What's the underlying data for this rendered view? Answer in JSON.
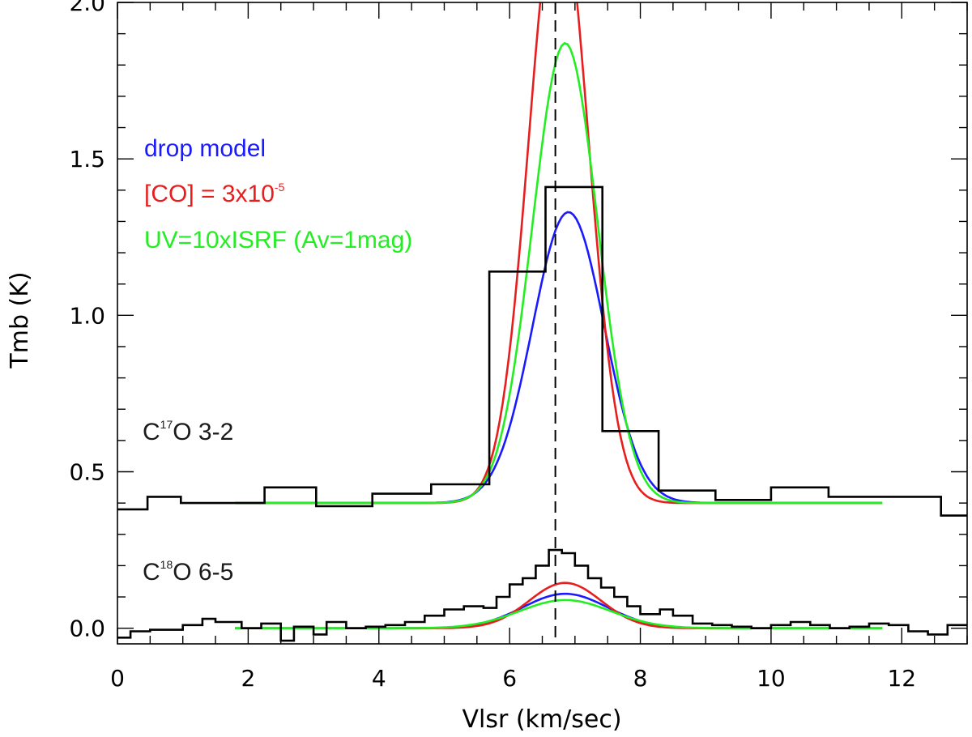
{
  "chart_data": {
    "type": "line",
    "xlabel": "Vlsr (km/sec)",
    "ylabel": "Tmb (K)",
    "xlim": [
      0,
      13
    ],
    "ylim": [
      -0.05,
      2.0
    ],
    "xticks": [
      0,
      2,
      4,
      6,
      8,
      10,
      12
    ],
    "xtick_labels": [
      "0",
      "2",
      "4",
      "6",
      "8",
      "10",
      "12"
    ],
    "yticks": [
      0.0,
      0.5,
      1.0,
      1.5,
      2.0
    ],
    "ytick_labels": [
      "0.0",
      "0.5",
      "1.0",
      "1.5",
      "2.0"
    ],
    "reference_line": {
      "x": 6.7,
      "style": "dashed"
    },
    "line_labels": [
      {
        "main": "C",
        "sup": "17",
        "rest": "O 3-2"
      },
      {
        "main": "C",
        "sup": "18",
        "rest": "O 6-5"
      }
    ],
    "legend": [
      {
        "label": "drop model",
        "color": "#1a1aff"
      },
      {
        "label_main": "[CO] = 3x10",
        "label_sup": "-5",
        "color": "#e81e1e"
      },
      {
        "label": "UV=10xISRF (Av=1mag)",
        "color": "#22ee22"
      }
    ],
    "observed": [
      {
        "name": "C17O 3-2 observed",
        "style": "step",
        "color": "#000000",
        "x": [
          0.0,
          0.46,
          0.46,
          0.97,
          0.97,
          1.47,
          1.47,
          2.25,
          2.25,
          3.04,
          3.04,
          3.9,
          3.9,
          4.8,
          4.8,
          5.69,
          5.69,
          6.55,
          6.55,
          7.42,
          7.42,
          8.28,
          8.28,
          9.15,
          9.15,
          10.0,
          10.0,
          10.88,
          10.88,
          11.74,
          11.74,
          12.6,
          12.6,
          13.0
        ],
        "y": [
          0.38,
          0.38,
          0.42,
          0.42,
          0.4,
          0.4,
          0.4,
          0.4,
          0.45,
          0.45,
          0.39,
          0.39,
          0.43,
          0.43,
          0.46,
          0.46,
          1.14,
          1.14,
          1.41,
          1.41,
          0.63,
          0.63,
          0.44,
          0.44,
          0.41,
          0.41,
          0.45,
          0.45,
          0.42,
          0.42,
          0.42,
          0.42,
          0.36,
          0.36
        ]
      },
      {
        "name": "C18O 6-5 observed",
        "style": "step",
        "color": "#000000",
        "x": [
          0.0,
          0.2,
          0.2,
          0.5,
          0.5,
          1.0,
          1.0,
          1.3,
          1.3,
          1.5,
          1.5,
          1.9,
          1.9,
          2.2,
          2.2,
          2.5,
          2.5,
          2.7,
          2.7,
          3.0,
          3.0,
          3.2,
          3.2,
          3.5,
          3.5,
          3.8,
          3.8,
          4.1,
          4.1,
          4.4,
          4.4,
          4.7,
          4.7,
          5.0,
          5.0,
          5.3,
          5.3,
          5.6,
          5.6,
          5.8,
          5.8,
          6.0,
          6.0,
          6.2,
          6.2,
          6.4,
          6.4,
          6.6,
          6.6,
          6.8,
          6.8,
          7.0,
          7.0,
          7.2,
          7.2,
          7.4,
          7.4,
          7.6,
          7.6,
          7.8,
          7.8,
          8.0,
          8.0,
          8.3,
          8.3,
          8.5,
          8.5,
          8.8,
          8.8,
          9.1,
          9.1,
          9.4,
          9.4,
          9.7,
          9.7,
          10.0,
          10.0,
          10.3,
          10.3,
          10.6,
          10.6,
          10.9,
          10.9,
          11.2,
          11.2,
          11.5,
          11.5,
          11.8,
          11.8,
          12.1,
          12.1,
          12.4,
          12.4,
          12.7,
          12.7,
          13.0
        ],
        "y": [
          -0.03,
          -0.03,
          -0.01,
          -0.01,
          -0.005,
          -0.005,
          0.01,
          0.01,
          0.03,
          0.03,
          0.02,
          0.02,
          0.0,
          0.0,
          0.015,
          0.015,
          -0.04,
          -0.04,
          0.005,
          0.005,
          -0.02,
          -0.02,
          0.02,
          0.02,
          0.0,
          0.0,
          0.005,
          0.005,
          0.01,
          0.01,
          0.02,
          0.02,
          0.04,
          0.04,
          0.06,
          0.06,
          0.07,
          0.07,
          0.065,
          0.065,
          0.1,
          0.1,
          0.14,
          0.14,
          0.16,
          0.16,
          0.2,
          0.2,
          0.25,
          0.25,
          0.24,
          0.24,
          0.2,
          0.2,
          0.16,
          0.16,
          0.13,
          0.13,
          0.1,
          0.1,
          0.07,
          0.07,
          0.045,
          0.045,
          0.06,
          0.06,
          0.04,
          0.04,
          0.015,
          0.015,
          0.01,
          0.01,
          0.005,
          0.005,
          0.0,
          0.0,
          0.01,
          0.01,
          0.02,
          0.02,
          0.01,
          0.01,
          0.0,
          0.0,
          0.005,
          0.005,
          0.015,
          0.015,
          0.01,
          0.01,
          -0.01,
          -0.01,
          -0.02,
          -0.02,
          0.01,
          0.01
        ]
      }
    ],
    "models": [
      {
        "name": "drop model (C17O)",
        "color": "#1a1aff",
        "baseline": 0.4,
        "amplitude": 0.93,
        "center": 6.9,
        "sigma": 0.55,
        "x_range": [
          1.8,
          11.7
        ]
      },
      {
        "name": "[CO] = 3x10-5 (C17O)",
        "color": "#e81e1e",
        "baseline": 0.4,
        "amplitude": 1.95,
        "center": 6.75,
        "sigma": 0.45,
        "x_range": [
          1.8,
          11.7
        ]
      },
      {
        "name": "UV=10xISRF (C17O)",
        "color": "#22ee22",
        "baseline": 0.4,
        "amplitude": 1.47,
        "center": 6.85,
        "sigma": 0.5,
        "x_range": [
          1.8,
          11.7
        ]
      },
      {
        "name": "drop model (C18O)",
        "color": "#1a1aff",
        "baseline": 0.0,
        "amplitude": 0.11,
        "center": 6.85,
        "sigma": 0.65,
        "x_range": [
          1.8,
          11.7
        ]
      },
      {
        "name": "[CO] = 3x10-5 (C18O)",
        "color": "#e81e1e",
        "baseline": 0.0,
        "amplitude": 0.145,
        "center": 6.85,
        "sigma": 0.55,
        "x_range": [
          1.8,
          11.7
        ]
      },
      {
        "name": "UV=10xISRF (C18O)",
        "color": "#22ee22",
        "baseline": 0.0,
        "amplitude": 0.09,
        "center": 6.85,
        "sigma": 0.7,
        "x_range": [
          1.8,
          11.7
        ]
      }
    ]
  }
}
